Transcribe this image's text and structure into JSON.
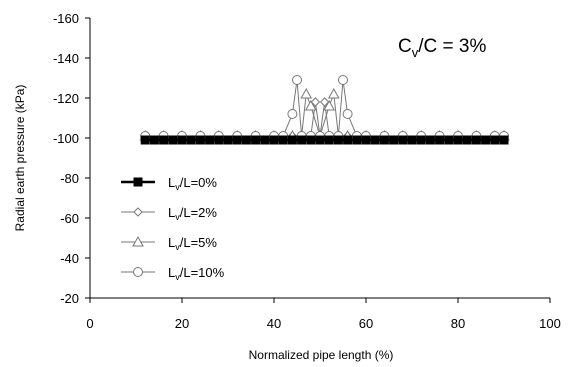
{
  "chart_data": {
    "type": "line",
    "title": "",
    "annotation": {
      "main": "C",
      "sub": "v",
      "rest": "/C = 3%"
    },
    "xlabel": "Normalized pipe length (%)",
    "ylabel": "Radial earth pressure (kPa)",
    "xlim": [
      0,
      100
    ],
    "ylim": [
      -20,
      -160
    ],
    "x_ticks": [
      0,
      20,
      40,
      60,
      80,
      100
    ],
    "y_ticks": [
      -20,
      -40,
      -60,
      -80,
      -100,
      -120,
      -140,
      -160
    ],
    "grid": false,
    "legend_position": "bottom-left",
    "series": [
      {
        "name": "L_v/L=0%",
        "label_main": "L",
        "label_sub": "v",
        "label_rest": "/L=0%",
        "marker": "square-filled",
        "x": [
          12,
          14,
          16,
          18,
          20,
          22,
          24,
          26,
          28,
          30,
          32,
          34,
          36,
          38,
          40,
          42,
          44,
          46,
          48,
          50,
          52,
          54,
          56,
          58,
          60,
          62,
          64,
          66,
          68,
          70,
          72,
          74,
          76,
          78,
          80,
          82,
          84,
          86,
          88,
          90
        ],
        "y": [
          -99,
          -99,
          -99,
          -99,
          -99,
          -99,
          -99,
          -99,
          -99,
          -99,
          -99,
          -99,
          -99,
          -99,
          -99,
          -99,
          -99,
          -99,
          -99,
          -99,
          -99,
          -99,
          -99,
          -99,
          -99,
          -99,
          -99,
          -99,
          -99,
          -99,
          -99,
          -99,
          -99,
          -99,
          -99,
          -99,
          -99,
          -99,
          -99,
          -99
        ]
      },
      {
        "name": "L_v/L=2%",
        "label_main": "L",
        "label_sub": "v",
        "label_rest": "/L=2%",
        "marker": "diamond-open",
        "x": [
          12,
          16,
          20,
          24,
          28,
          32,
          36,
          40,
          44,
          46,
          48,
          49,
          50,
          51,
          52,
          54,
          56,
          60,
          64,
          68,
          72,
          76,
          80,
          84,
          88,
          90
        ],
        "y": [
          -101,
          -101,
          -101,
          -101,
          -101,
          -101,
          -101,
          -101,
          -101,
          -101,
          -101,
          -118,
          -101,
          -118,
          -101,
          -101,
          -101,
          -101,
          -101,
          -101,
          -101,
          -101,
          -101,
          -101,
          -101,
          -101
        ]
      },
      {
        "name": "L_v/L=5%",
        "label_main": "L",
        "label_sub": "v",
        "label_rest": "/L=5%",
        "marker": "triangle-open",
        "x": [
          12,
          16,
          20,
          24,
          28,
          32,
          36,
          40,
          44,
          46,
          47,
          48,
          50,
          52,
          53,
          54,
          56,
          60,
          64,
          68,
          72,
          76,
          80,
          84,
          88,
          90
        ],
        "y": [
          -101,
          -101,
          -101,
          -101,
          -101,
          -101,
          -101,
          -101,
          -101,
          -101,
          -122,
          -116,
          -101,
          -116,
          -122,
          -101,
          -101,
          -101,
          -101,
          -101,
          -101,
          -101,
          -101,
          -101,
          -101,
          -101
        ]
      },
      {
        "name": "L_v/L=10%",
        "label_main": "L",
        "label_sub": "v",
        "label_rest": "/L=10%",
        "marker": "circle-open",
        "x": [
          12,
          16,
          20,
          24,
          28,
          32,
          36,
          40,
          42,
          44,
          45,
          46,
          48,
          50,
          52,
          54,
          55,
          56,
          58,
          60,
          64,
          68,
          72,
          76,
          80,
          84,
          88,
          90
        ],
        "y": [
          -101,
          -101,
          -101,
          -101,
          -101,
          -101,
          -101,
          -101,
          -101,
          -112,
          -129,
          -101,
          -101,
          -101,
          -101,
          -101,
          -129,
          -112,
          -101,
          -101,
          -101,
          -101,
          -101,
          -101,
          -101,
          -101,
          -101,
          -101
        ]
      }
    ]
  }
}
